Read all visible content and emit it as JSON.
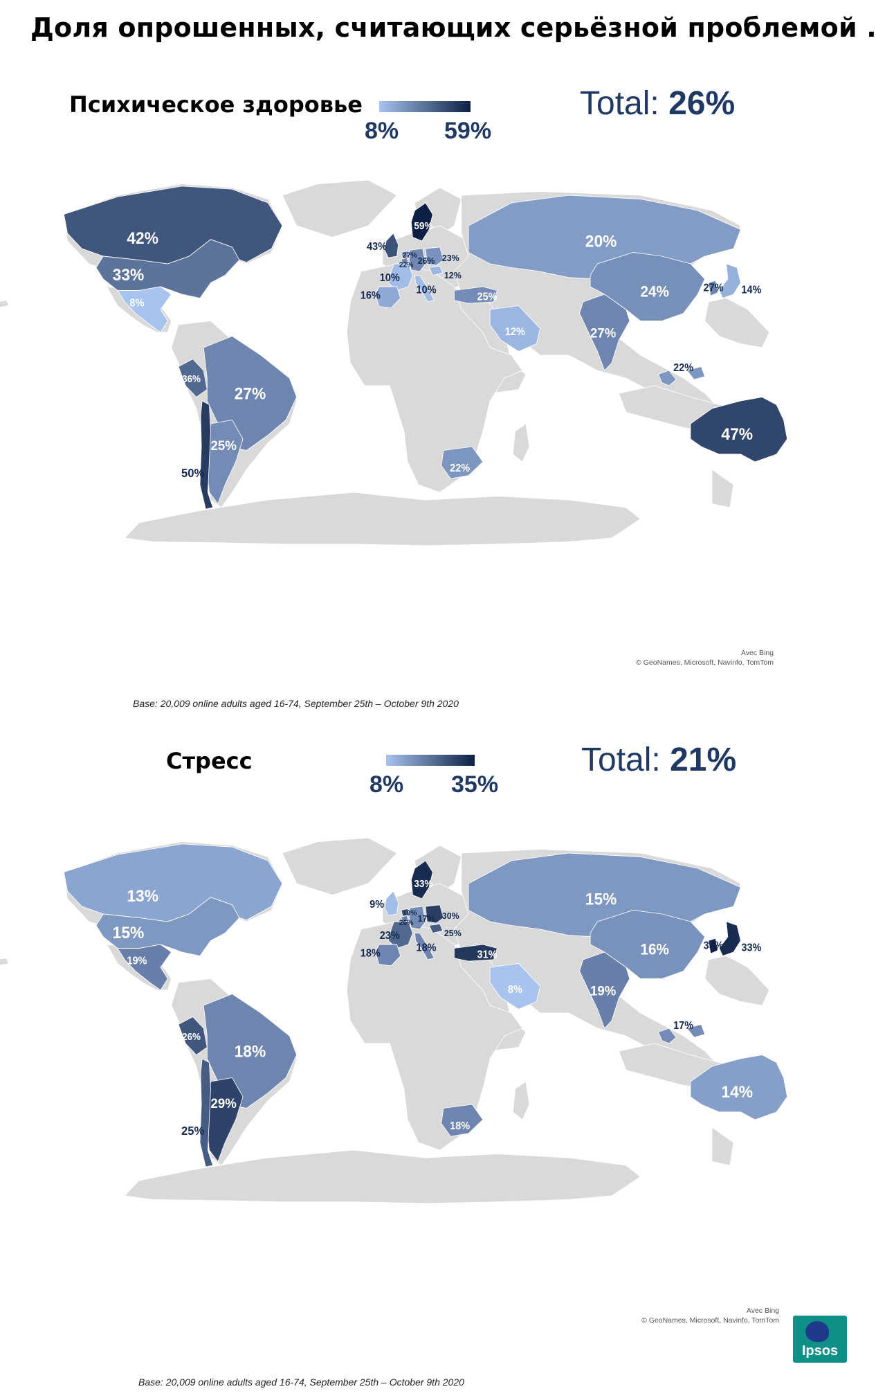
{
  "title": "Доля опрошенных, считающих серьёзной проблемой ...",
  "colors": {
    "land_grey": "#d9d9d9",
    "border": "#ffffff",
    "scale_low": "#a7c3ee",
    "scale_high": "#0d1f44",
    "label_dark": "#14284f",
    "label_light": "#ffffff"
  },
  "panels": [
    {
      "title": "Психическое здоровье",
      "scale_min_label": "8%",
      "scale_max_label": "59%",
      "scale_min": 8,
      "scale_max": 59,
      "total_prefix": "Total: ",
      "total_value": "26%",
      "attribution": [
        "Avec Bing",
        "© GeoNames, Microsoft, Navinfo, TomTom"
      ],
      "base_note": "Base: 20,009 online adults aged 16-74, September 25th – October 9th 2020",
      "countries": [
        {
          "name": "Canada",
          "value": 42,
          "label": "42%"
        },
        {
          "name": "United States",
          "value": 33,
          "label": "33%"
        },
        {
          "name": "Mexico",
          "value": 8,
          "label": "8%"
        },
        {
          "name": "Peru",
          "value": 36,
          "label": "36%"
        },
        {
          "name": "Brazil",
          "value": 27,
          "label": "27%"
        },
        {
          "name": "Argentina",
          "value": 25,
          "label": "25%"
        },
        {
          "name": "Chile",
          "value": 50,
          "label": "50%"
        },
        {
          "name": "Sweden",
          "value": 59,
          "label": "59%"
        },
        {
          "name": "Great Britain",
          "value": 43,
          "label": "43%"
        },
        {
          "name": "Belgium",
          "value": 27,
          "label": "27%"
        },
        {
          "name": "Netherlands",
          "value": 22,
          "label": "22%"
        },
        {
          "name": "Germany",
          "value": 26,
          "label": "26%"
        },
        {
          "name": "Poland",
          "value": 23,
          "label": "23%"
        },
        {
          "name": "Hungary",
          "value": 12,
          "label": "12%"
        },
        {
          "name": "France",
          "value": 10,
          "label": "10%"
        },
        {
          "name": "Italy",
          "value": 10,
          "label": "10%"
        },
        {
          "name": "Spain",
          "value": 16,
          "label": "16%"
        },
        {
          "name": "Turkey",
          "value": 25,
          "label": "25%"
        },
        {
          "name": "Russia",
          "value": 20,
          "label": "20%"
        },
        {
          "name": "Saudi Arabia",
          "value": 12,
          "label": "12%"
        },
        {
          "name": "South Africa",
          "value": 22,
          "label": "22%"
        },
        {
          "name": "India",
          "value": 27,
          "label": "27%"
        },
        {
          "name": "China",
          "value": 24,
          "label": "24%"
        },
        {
          "name": "South Korea",
          "value": 27,
          "label": "27%"
        },
        {
          "name": "Japan",
          "value": 14,
          "label": "14%"
        },
        {
          "name": "Malaysia",
          "value": 22,
          "label": "22%"
        },
        {
          "name": "Australia",
          "value": 47,
          "label": "47%"
        }
      ]
    },
    {
      "title": "Стресс",
      "scale_min_label": "8%",
      "scale_max_label": "35%",
      "scale_min": 8,
      "scale_max": 35,
      "total_prefix": "Total: ",
      "total_value": "21%",
      "attribution": [
        "Avec Bing",
        "© GeoNames, Microsoft, Navinfo, TomTom"
      ],
      "base_note": "Base: 20,009 online adults aged 16-74, September 25th – October 9th 2020",
      "logo_text": "Ipsos",
      "countries": [
        {
          "name": "Canada",
          "value": 13,
          "label": "13%"
        },
        {
          "name": "United States",
          "value": 15,
          "label": "15%"
        },
        {
          "name": "Mexico",
          "value": 19,
          "label": "19%"
        },
        {
          "name": "Peru",
          "value": 26,
          "label": "26%"
        },
        {
          "name": "Brazil",
          "value": 18,
          "label": "18%"
        },
        {
          "name": "Argentina",
          "value": 29,
          "label": "29%"
        },
        {
          "name": "Chile",
          "value": 25,
          "label": "25%"
        },
        {
          "name": "Sweden",
          "value": 33,
          "label": "33%"
        },
        {
          "name": "Great Britain",
          "value": 9,
          "label": "9%"
        },
        {
          "name": "Belgium",
          "value": 19,
          "label": "19%"
        },
        {
          "name": "Netherlands",
          "value": 26,
          "label": "26%"
        },
        {
          "name": "Germany",
          "value": 17,
          "label": "17%"
        },
        {
          "name": "Poland",
          "value": 30,
          "label": "30%"
        },
        {
          "name": "Hungary",
          "value": 25,
          "label": "25%"
        },
        {
          "name": "France",
          "value": 23,
          "label": "23%"
        },
        {
          "name": "Italy",
          "value": 18,
          "label": "18%"
        },
        {
          "name": "Spain",
          "value": 18,
          "label": "18%"
        },
        {
          "name": "Turkey",
          "value": 31,
          "label": "31%"
        },
        {
          "name": "Russia",
          "value": 15,
          "label": "15%"
        },
        {
          "name": "Saudi Arabia",
          "value": 8,
          "label": "8%"
        },
        {
          "name": "South Africa",
          "value": 18,
          "label": "18%"
        },
        {
          "name": "India",
          "value": 19,
          "label": "19%"
        },
        {
          "name": "China",
          "value": 16,
          "label": "16%"
        },
        {
          "name": "South Korea",
          "value": 35,
          "label": "35%"
        },
        {
          "name": "Japan",
          "value": 33,
          "label": "33%"
        },
        {
          "name": "Malaysia",
          "value": 17,
          "label": "17%"
        },
        {
          "name": "Australia",
          "value": 14,
          "label": "14%"
        }
      ]
    }
  ]
}
